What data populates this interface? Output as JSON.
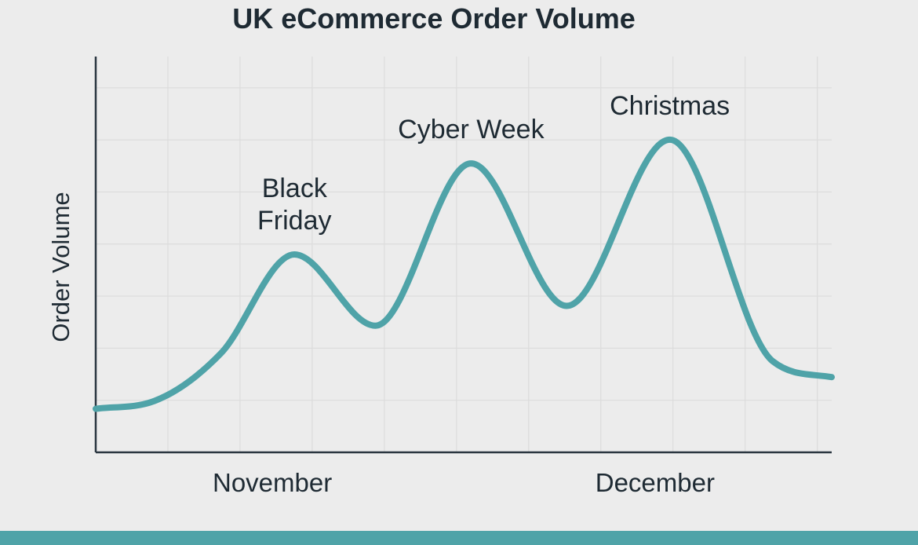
{
  "chart_data": {
    "type": "line",
    "title": "UK eCommerce Order Volume",
    "xlabel": "",
    "ylabel": "Order Volume",
    "x_ticks": [
      "November",
      "December"
    ],
    "grid": true,
    "legend": "none",
    "ylim": [
      0,
      100
    ],
    "series": [
      {
        "color": "#4fa3a8",
        "values": [
          {
            "x": 0,
            "y": 11
          },
          {
            "x": 8,
            "y": 13
          },
          {
            "x": 17,
            "y": 25
          },
          {
            "x": 27,
            "y": 50
          },
          {
            "x": 38,
            "y": 32
          },
          {
            "x": 51,
            "y": 73
          },
          {
            "x": 64,
            "y": 37
          },
          {
            "x": 78,
            "y": 79
          },
          {
            "x": 92,
            "y": 23
          },
          {
            "x": 100,
            "y": 19
          }
        ]
      }
    ],
    "annotations": [
      {
        "text": "Black Friday",
        "lines": [
          "Black",
          "Friday"
        ],
        "x": 27,
        "y": 50
      },
      {
        "text": "Cyber Week",
        "lines": [
          "Cyber Week"
        ],
        "x": 51,
        "y": 73
      },
      {
        "text": "Christmas",
        "lines": [
          "Christmas"
        ],
        "x": 78,
        "y": 79
      }
    ]
  }
}
